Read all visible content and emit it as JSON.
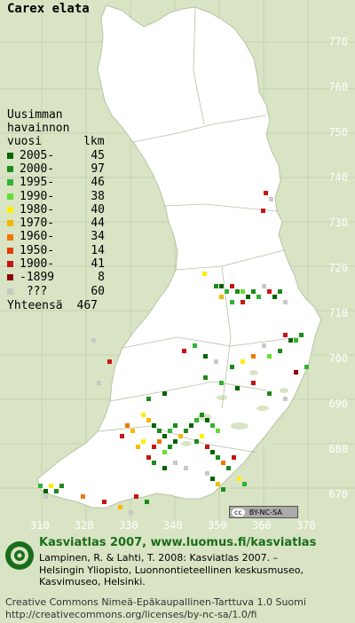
{
  "species": "Carex elata",
  "legend": {
    "header": [
      "Uusimman",
      "havainnon",
      "vuosi      lkm"
    ],
    "items": [
      {
        "label": "2005-",
        "count": "45",
        "color": "#006400"
      },
      {
        "label": "2000-",
        "count": "97",
        "color": "#1c8a1c"
      },
      {
        "label": "1995-",
        "count": "46",
        "color": "#33b233"
      },
      {
        "label": "1990-",
        "count": "38",
        "color": "#66dd33"
      },
      {
        "label": "1980-",
        "count": "40",
        "color": "#ffee00"
      },
      {
        "label": "1970-",
        "count": "44",
        "color": "#f5b800"
      },
      {
        "label": "1960-",
        "count": "34",
        "color": "#f07800"
      },
      {
        "label": "1950-",
        "count": "14",
        "color": "#e03c00"
      },
      {
        "label": "1900-",
        "count": "41",
        "color": "#c81414"
      },
      {
        "label": "-1899",
        "count": "8",
        "color": "#8b0000"
      },
      {
        "label": " ???",
        "count": "60",
        "color": "#c8c8c8"
      }
    ],
    "total_label": "Yhteensä",
    "total_count": "467"
  },
  "y_ticks": [
    "770",
    "760",
    "750",
    "740",
    "730",
    "720",
    "710",
    "700",
    "690",
    "680",
    "670"
  ],
  "x_ticks": [
    "310",
    "320",
    "330",
    "340",
    "350",
    "360",
    "370"
  ],
  "cc_badge": [
    "cc",
    "BY-NC-SA"
  ],
  "credit": {
    "title": "Kasviatlas 2007, www.luomus.fi/kasviatlas",
    "lines": [
      "Lampinen, R. & Lahti, T. 2008: Kasviatlas 2007. –",
      "Helsingin Yliopisto, Luonnontieteellinen keskusmuseo,",
      "Kasvimuseo, Helsinki."
    ]
  },
  "license": [
    "Creative Commons Nimeä-Epäkaupallinen-Tarttuva 1.0 Suomi",
    "http://creativecommons.org/licenses/by-nc-sa/1.0/fi"
  ],
  "colors": {
    "background": "#d8e4c4",
    "land": "#ffffff",
    "lakes": "#d8e4c4",
    "credit_green": "#1a6e1a"
  }
}
